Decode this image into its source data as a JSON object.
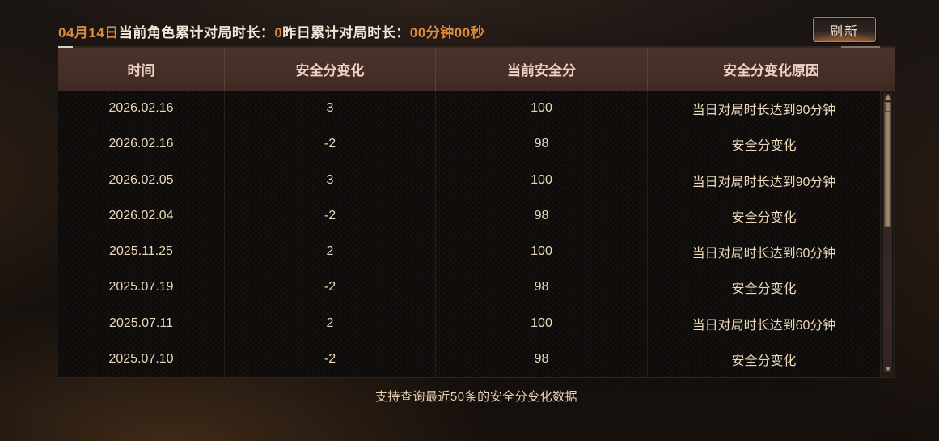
{
  "top_bar": {
    "date_label": "04月14日",
    "today_label": "当前角色累计对局时长：",
    "today_value": "0",
    "yesterday_label": "昨日累计对局时长：",
    "yesterday_value": "00分钟00秒",
    "refresh_label": "刷新"
  },
  "table": {
    "columns": [
      "时间",
      "安全分变化",
      "当前安全分",
      "安全分变化原因"
    ],
    "rows": [
      [
        "2026.02.16",
        "3",
        "100",
        "当日对局时长达到90分钟"
      ],
      [
        "2026.02.16",
        "-2",
        "98",
        "安全分变化"
      ],
      [
        "2026.02.05",
        "3",
        "100",
        "当日对局时长达到90分钟"
      ],
      [
        "2026.02.04",
        "-2",
        "98",
        "安全分变化"
      ],
      [
        "2025.11.25",
        "2",
        "100",
        "当日对局时长达到60分钟"
      ],
      [
        "2025.07.19",
        "-2",
        "98",
        "安全分变化"
      ],
      [
        "2025.07.11",
        "2",
        "100",
        "当日对局时长达到60分钟"
      ],
      [
        "2025.07.10",
        "-2",
        "98",
        "安全分变化"
      ]
    ]
  },
  "footer_note": "支持查询最近50条的安全分变化数据",
  "colors": {
    "accent_orange": "#de8a3e",
    "cream_text": "#efe6d7",
    "header_bg": "#46302a",
    "header_text": "#eed2c2",
    "body_text": "#ecd9bc",
    "scroll_thumb": "#988269"
  }
}
